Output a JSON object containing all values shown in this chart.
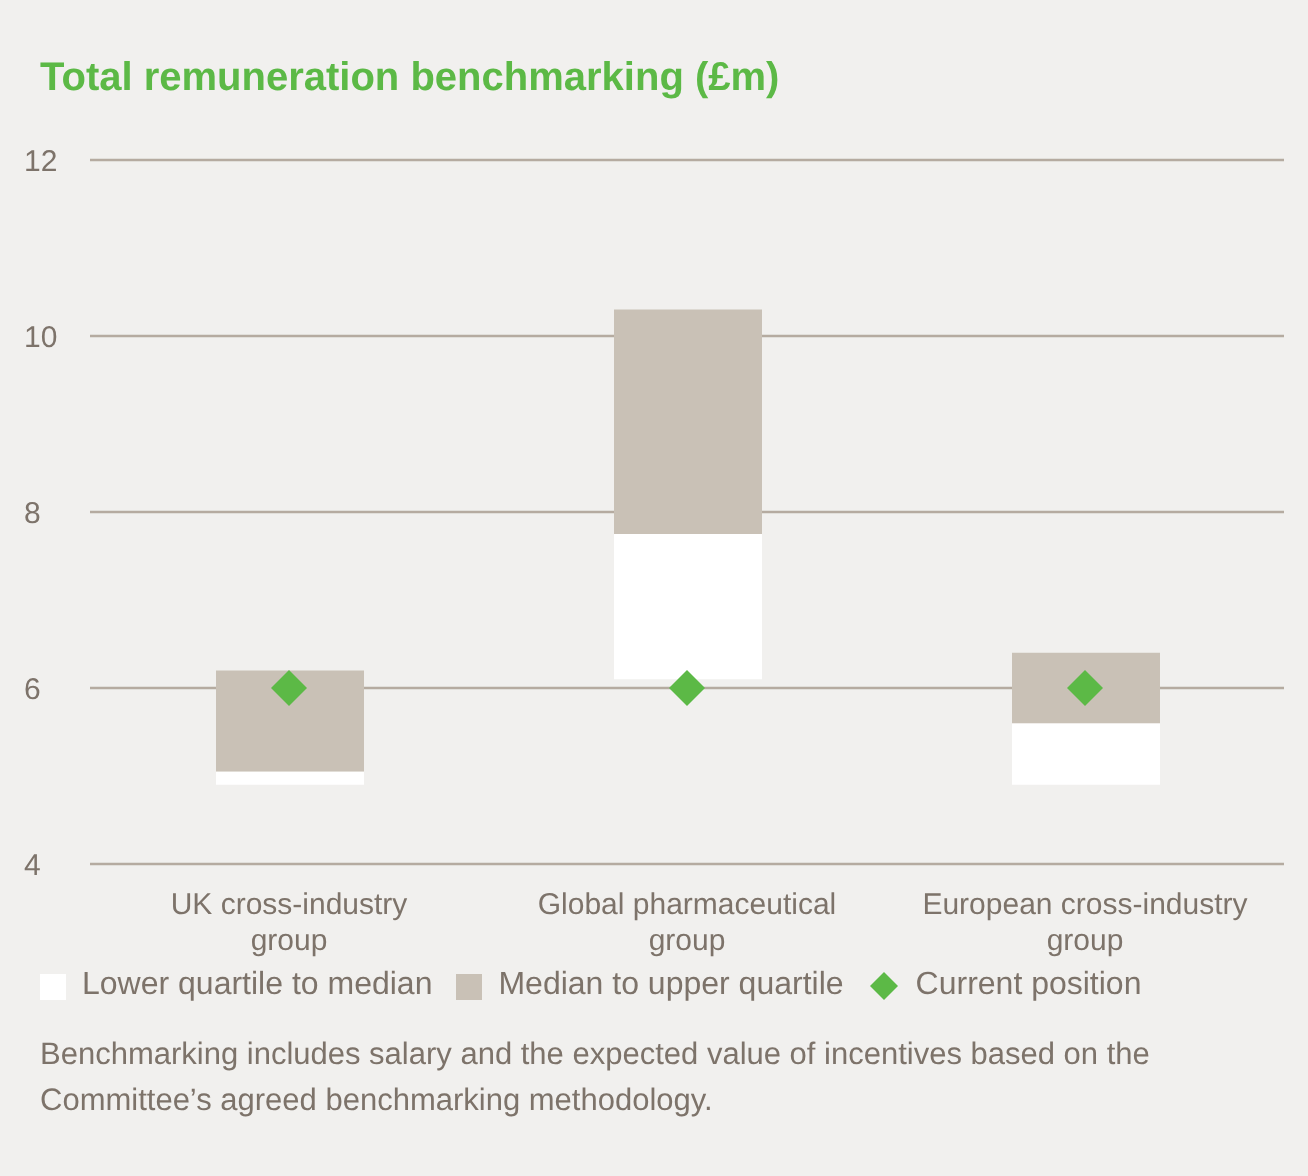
{
  "chart_data": {
    "type": "bar",
    "title": "Total remuneration benchmarking (£m)",
    "categories": [
      "UK cross-industry group",
      "Global pharmaceutical group",
      "European cross-industry group"
    ],
    "series": [
      {
        "name": "Lower quartile to median",
        "color": "#ffffff",
        "base": [
          4.9,
          6.1,
          4.9
        ],
        "values": [
          0.15,
          1.65,
          0.7
        ]
      },
      {
        "name": "Median to upper quartile",
        "color": "#c9c1b6",
        "base": [
          5.05,
          7.75,
          5.6
        ],
        "values": [
          1.15,
          2.55,
          0.8
        ]
      },
      {
        "name": "Current position",
        "type": "scatter",
        "color": "#5cb946",
        "x": [
          "UK cross-industry group",
          "Global pharmaceutical group",
          "European cross-industry group"
        ],
        "values": [
          6,
          6,
          6
        ]
      }
    ],
    "marker": "diamond",
    "ylim": [
      4,
      12
    ],
    "yticks": [
      4,
      6,
      8,
      10,
      12
    ],
    "grid": "y",
    "legend": "bottom",
    "annotations": [
      "Benchmarking includes salary and the expected value of incentives based on the Committee’s agreed benchmarking methodology."
    ]
  }
}
